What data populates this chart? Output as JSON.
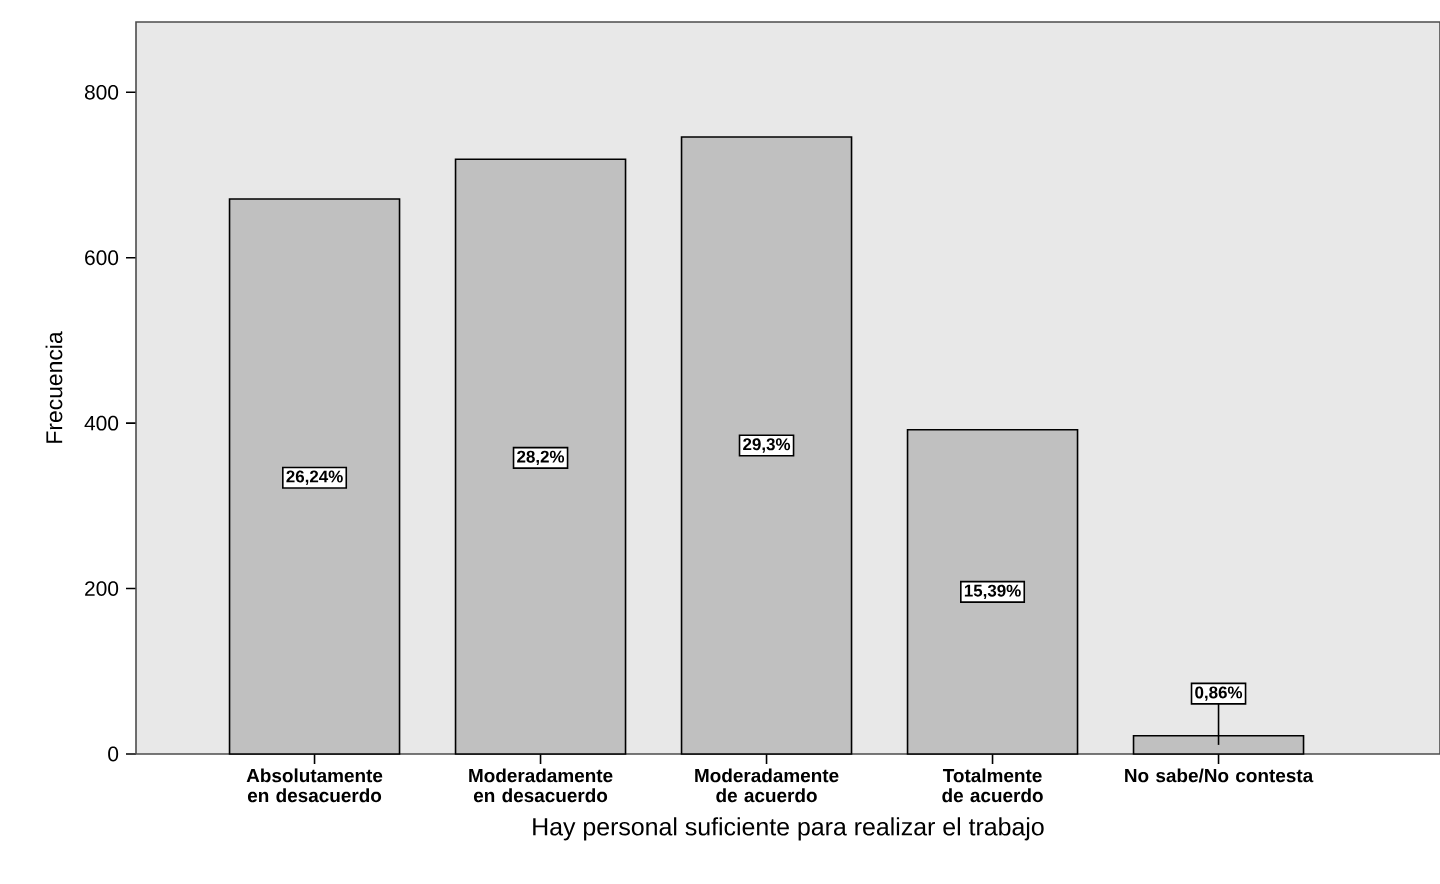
{
  "chart_data": {
    "type": "bar",
    "xlabel": "Hay personal suficiente para realizar el trabajo",
    "ylabel": "Frecuencia",
    "categories": [
      "Absolutamente en desacuerdo",
      "Moderadamente en desacuerdo",
      "Moderadamente de acuerdo",
      "Totalmente de acuerdo",
      "No sabe/No contesta"
    ],
    "values": [
      671,
      719,
      746,
      392,
      22
    ],
    "annotations": [
      {
        "text": "26,24%",
        "x": "Absolutamente en desacuerdo",
        "y": 334
      },
      {
        "text": "28,2%",
        "x": "Moderadamente en desacuerdo",
        "y": 358
      },
      {
        "text": "29,3%",
        "x": "Moderadamente de acuerdo",
        "y": 373
      },
      {
        "text": "15,39%",
        "x": "Totalmente de acuerdo",
        "y": 196
      },
      {
        "text": "0,86%",
        "x": "No sabe/No contesta",
        "y": 73
      }
    ],
    "color": "#c0c0c0",
    "ylim": [
      0,
      885
    ],
    "yticks": [
      0,
      200,
      400,
      600,
      800
    ],
    "grid": false
  }
}
